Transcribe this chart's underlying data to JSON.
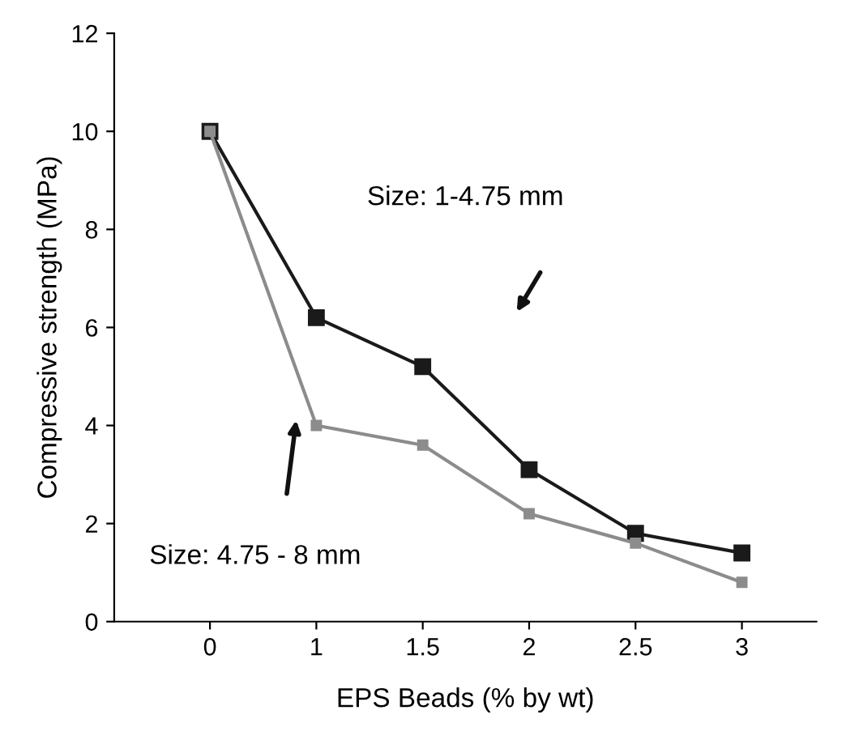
{
  "chart_data": {
    "type": "line",
    "xlabel": "EPS Beads (% by wt)",
    "ylabel": "Compressive strength (MPa)",
    "categories": [
      "0",
      "1",
      "1.5",
      "2",
      "2.5",
      "3"
    ],
    "series": [
      {
        "color": "#1a1a1a",
        "values": [
          10,
          6.2,
          5.2,
          3.1,
          1.8,
          1.4
        ]
      },
      {
        "color": "#8c8c8c",
        "values": [
          10,
          4.0,
          3.6,
          2.2,
          1.6,
          0.8
        ]
      }
    ],
    "ylim": [
      0,
      12
    ],
    "yticks": [
      0,
      2,
      4,
      6,
      8,
      10,
      12
    ],
    "grid": false,
    "legend": false,
    "marker": "square",
    "line_style": "solid",
    "annotations": [
      "Size: 1-4.75 mm",
      "Size: 4.75 - 8 mm"
    ]
  }
}
